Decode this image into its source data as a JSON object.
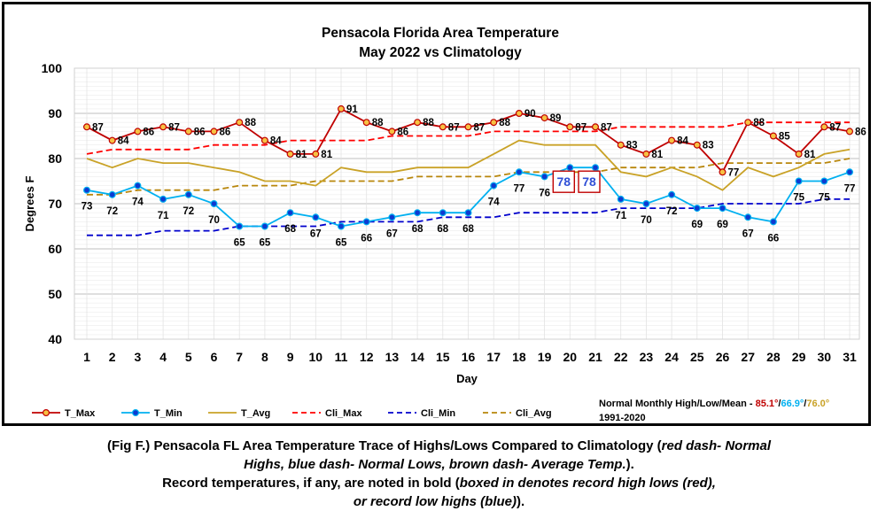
{
  "chart_data": {
    "type": "line",
    "title": "Pensacola Florida Area Temperature",
    "subtitle": "May 2022 vs Climatology",
    "xlabel": "Day",
    "ylabel": "Degrees F",
    "ylim": [
      40,
      100
    ],
    "yticks": [
      40,
      50,
      60,
      70,
      80,
      90,
      100
    ],
    "grid": true,
    "x": [
      1,
      2,
      3,
      4,
      5,
      6,
      7,
      8,
      9,
      10,
      11,
      12,
      13,
      14,
      15,
      16,
      17,
      18,
      19,
      20,
      21,
      22,
      23,
      24,
      25,
      26,
      27,
      28,
      29,
      30,
      31
    ],
    "series": [
      {
        "name": "T_Max",
        "color": "#c00000",
        "style": "solid",
        "marker": "circle-gold",
        "values": [
          87,
          84,
          86,
          87,
          86,
          86,
          88,
          84,
          81,
          81,
          91,
          88,
          86,
          88,
          87,
          87,
          88,
          90,
          89,
          87,
          87,
          83,
          81,
          84,
          83,
          77,
          88,
          85,
          81,
          87,
          86
        ]
      },
      {
        "name": "T_Min",
        "color": "#00b0f0",
        "style": "solid",
        "marker": "circle-blue",
        "values": [
          73,
          72,
          74,
          71,
          72,
          70,
          65,
          65,
          68,
          67,
          65,
          66,
          67,
          68,
          68,
          68,
          74,
          77,
          76,
          78,
          78,
          71,
          70,
          72,
          69,
          69,
          67,
          66,
          75,
          75,
          77
        ]
      },
      {
        "name": "T_Avg",
        "color": "#c9a227",
        "style": "solid",
        "marker": "none",
        "values": [
          80,
          78,
          80,
          79,
          79,
          78,
          77,
          75,
          75,
          74,
          78,
          77,
          77,
          78,
          78,
          78,
          81,
          84,
          83,
          83,
          83,
          77,
          76,
          78,
          76,
          73,
          78,
          76,
          78,
          81,
          82
        ]
      },
      {
        "name": "Cli_Max",
        "color": "#ff0000",
        "style": "dashed",
        "marker": "none",
        "values": [
          81,
          82,
          82,
          82,
          82,
          83,
          83,
          83,
          84,
          84,
          84,
          84,
          85,
          85,
          85,
          85,
          86,
          86,
          86,
          86,
          86,
          87,
          87,
          87,
          87,
          87,
          88,
          88,
          88,
          88,
          88
        ]
      },
      {
        "name": "Cli_Min",
        "color": "#0000cc",
        "style": "dashed",
        "marker": "none",
        "values": [
          63,
          63,
          63,
          64,
          64,
          64,
          65,
          65,
          65,
          65,
          66,
          66,
          66,
          66,
          67,
          67,
          67,
          68,
          68,
          68,
          68,
          69,
          69,
          69,
          69,
          70,
          70,
          70,
          70,
          71,
          71
        ]
      },
      {
        "name": "Cli_Avg",
        "color": "#b8860b",
        "style": "dashed",
        "marker": "none",
        "values": [
          72,
          72,
          73,
          73,
          73,
          73,
          74,
          74,
          74,
          75,
          75,
          75,
          75,
          76,
          76,
          76,
          76,
          77,
          77,
          77,
          77,
          78,
          78,
          78,
          78,
          79,
          79,
          79,
          79,
          79,
          80
        ]
      }
    ],
    "record_boxed_days": [
      20,
      21
    ],
    "normals": {
      "label": "Normal Monthly High/Low/Mean - ",
      "high": "85.1°",
      "low": "66.9°",
      "mean": "76.0°",
      "sep": "/",
      "period": "1991-2020",
      "high_color": "#c00000",
      "low_color": "#00b0f0",
      "mean_color": "#c9a227"
    }
  },
  "caption": {
    "line1_a": "(Fig F.) Pensacola FL Area Temperature Trace of Highs/Lows Compared to Climatology (",
    "line1_b": "red dash- Normal",
    "line2_a": "Highs, blue dash- Normal Lows, brown dash- Average Temp.",
    "line2_b": ").",
    "line3_a": "Record temperatures, if any, are noted in bold (",
    "line3_b": "boxed in denotes record high lows (red),",
    "line4_a": "or record low highs (blue)",
    "line4_b": ")."
  }
}
